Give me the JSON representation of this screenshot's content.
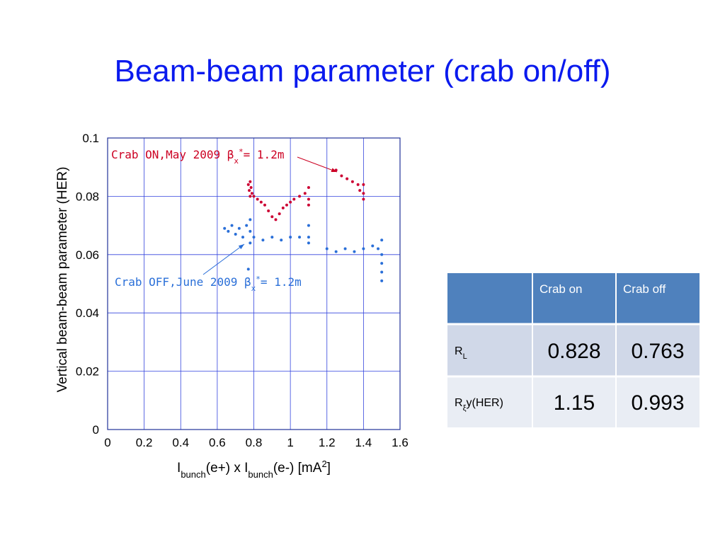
{
  "slide_title": "Beam-beam parameter (crab on/off)",
  "chart_data": {
    "type": "scatter",
    "x_label": [
      "I",
      "bunch",
      "(e+) x I",
      "bunch",
      "(e-) [mA",
      "2",
      "]"
    ],
    "y_label": "Vertical beam-beam parameter (HER)",
    "xlim": [
      0,
      1.6
    ],
    "xticks": [
      0,
      0.2,
      0.4,
      0.6,
      0.8,
      1,
      1.2,
      1.4,
      1.6
    ],
    "ylim": [
      0,
      0.1
    ],
    "yticks": [
      0,
      0.02,
      0.04,
      0.06,
      0.08,
      0.1
    ],
    "grid": true,
    "annotations": [
      {
        "parts": [
          "Crab ON,May 2009 ",
          "β",
          "x",
          "*",
          "= 1.2m"
        ],
        "color": "#cc0022"
      },
      {
        "parts": [
          "Crab OFF,June 2009 ",
          "β",
          "x",
          "*",
          "= 1.2m"
        ],
        "color": "#2a6fd8"
      }
    ],
    "series": [
      {
        "color": "#cc0033",
        "x": [
          0.77,
          0.775,
          0.78,
          0.78,
          0.785,
          0.79,
          0.8,
          0.82,
          0.84,
          0.86,
          0.88,
          0.9,
          0.92,
          0.94,
          0.96,
          0.98,
          1.0,
          1.02,
          1.05,
          1.08,
          1.1,
          1.1,
          1.1,
          1.25,
          1.28,
          1.31,
          1.34,
          1.37,
          1.4,
          1.4,
          1.4,
          1.38
        ],
        "values": [
          0.084,
          0.082,
          0.08,
          0.085,
          0.083,
          0.081,
          0.08,
          0.079,
          0.078,
          0.077,
          0.075,
          0.073,
          0.072,
          0.074,
          0.076,
          0.077,
          0.078,
          0.079,
          0.08,
          0.081,
          0.083,
          0.079,
          0.077,
          0.089,
          0.087,
          0.086,
          0.085,
          0.084,
          0.084,
          0.081,
          0.079,
          0.082
        ]
      },
      {
        "color": "#2a6fd8",
        "x": [
          0.64,
          0.66,
          0.68,
          0.7,
          0.72,
          0.74,
          0.76,
          0.78,
          0.78,
          0.78,
          0.77,
          0.8,
          0.85,
          0.9,
          0.95,
          1.0,
          1.05,
          1.1,
          1.1,
          1.1,
          1.2,
          1.25,
          1.3,
          1.35,
          1.4,
          1.45,
          1.48,
          1.5,
          1.5,
          1.5,
          1.5,
          1.5
        ],
        "values": [
          0.069,
          0.068,
          0.07,
          0.067,
          0.069,
          0.066,
          0.07,
          0.072,
          0.068,
          0.064,
          0.055,
          0.066,
          0.065,
          0.066,
          0.065,
          0.066,
          0.066,
          0.07,
          0.066,
          0.064,
          0.062,
          0.061,
          0.062,
          0.061,
          0.062,
          0.063,
          0.062,
          0.065,
          0.06,
          0.057,
          0.054,
          0.051
        ]
      }
    ]
  },
  "table": {
    "header": [
      "Crab on",
      "Crab off"
    ],
    "rows": [
      {
        "label": [
          "R",
          "L"
        ],
        "values": [
          0.828,
          0.763
        ]
      },
      {
        "label": [
          "R",
          "ξ",
          "y(HER)"
        ],
        "values": [
          1.15,
          0.993
        ]
      }
    ]
  }
}
